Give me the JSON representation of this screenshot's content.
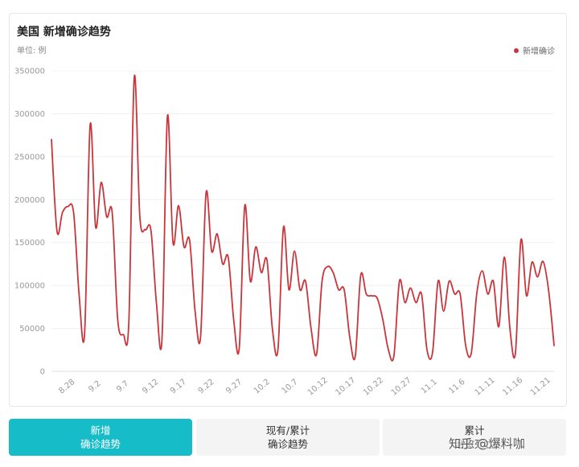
{
  "header": {
    "title": "美国 新增确诊趋势",
    "unit": "单位: 例"
  },
  "legend": {
    "label": "新增确诊",
    "color": "#c9353a"
  },
  "tabs": [
    {
      "line1": "新增",
      "line2": "确诊趋势",
      "active": true
    },
    {
      "line1": "现有/累计",
      "line2": "确诊趋势",
      "active": false
    },
    {
      "line1": "累计",
      "line2": "治愈死亡",
      "active": false
    }
  ],
  "watermark": "知乎 @爆料咖",
  "chart_data": {
    "type": "line",
    "y_ticks": [
      0,
      50000,
      100000,
      150000,
      200000,
      250000,
      300000,
      350000
    ],
    "x_ticks": [
      "8.28",
      "9.2",
      "9.7",
      "9.12",
      "9.17",
      "9.22",
      "9.27",
      "10.2",
      "10.7",
      "10.12",
      "10.17",
      "10.22",
      "10.27",
      "11.1",
      "11.6",
      "11.11",
      "11.16",
      "11.21"
    ],
    "ylim": [
      0,
      350000
    ],
    "grid": true,
    "legend_position": "top-right",
    "series": [
      {
        "name": "新增确诊",
        "color": "#c9353a",
        "values": [
          270000,
          163000,
          185000,
          192000,
          185000,
          90000,
          44000,
          287000,
          168000,
          220000,
          180000,
          185000,
          60000,
          43000,
          57000,
          343000,
          180000,
          165000,
          165000,
          80000,
          37000,
          297000,
          150000,
          193000,
          145000,
          153000,
          70000,
          40000,
          208000,
          140000,
          160000,
          125000,
          133000,
          60000,
          27000,
          193000,
          105000,
          145000,
          115000,
          130000,
          50000,
          25000,
          168000,
          95000,
          140000,
          95000,
          105000,
          50000,
          20000,
          105000,
          122000,
          115000,
          95000,
          95000,
          40000,
          17000,
          112000,
          90000,
          88000,
          85000,
          60000,
          25000,
          18000,
          105000,
          80000,
          97000,
          80000,
          90000,
          25000,
          22000,
          105000,
          70000,
          105000,
          90000,
          90000,
          30000,
          21000,
          90000,
          117000,
          90000,
          105000,
          52000,
          133000,
          50000,
          21000,
          153000,
          88000,
          127000,
          110000,
          128000,
          95000,
          30000
        ]
      }
    ]
  }
}
